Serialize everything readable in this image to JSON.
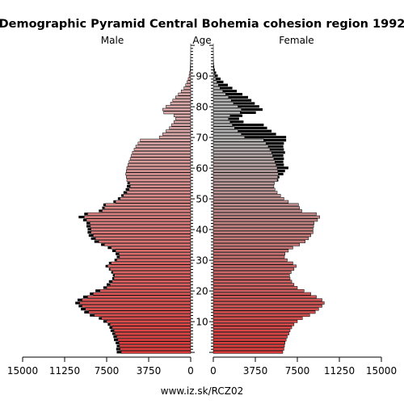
{
  "chart_data": {
    "type": "bar",
    "title": "Demographic Pyramid Central Bohemia cohesion region 1992",
    "left_label": "Male",
    "center_label": "Age",
    "right_label": "Female",
    "source": "www.iz.sk/RCZ02",
    "xlim": [
      0,
      15000
    ],
    "x_ticks_left": [
      "15000",
      "11250",
      "7500",
      "3750",
      "0"
    ],
    "x_ticks_right": [
      "0",
      "3750",
      "7500",
      "11250",
      "15000"
    ],
    "tick_values": [
      0,
      3750,
      7500,
      11250,
      15000
    ],
    "age_ticks": [
      10,
      20,
      30,
      40,
      50,
      60,
      70,
      80,
      90
    ],
    "ages": [
      0,
      1,
      2,
      3,
      4,
      5,
      6,
      7,
      8,
      9,
      10,
      11,
      12,
      13,
      14,
      15,
      16,
      17,
      18,
      19,
      20,
      21,
      22,
      23,
      24,
      25,
      26,
      27,
      28,
      29,
      30,
      31,
      32,
      33,
      34,
      35,
      36,
      37,
      38,
      39,
      40,
      41,
      42,
      43,
      44,
      45,
      46,
      47,
      48,
      49,
      50,
      51,
      52,
      53,
      54,
      55,
      56,
      57,
      58,
      59,
      60,
      61,
      62,
      63,
      64,
      65,
      66,
      67,
      68,
      69,
      70,
      71,
      72,
      73,
      74,
      75,
      76,
      77,
      78,
      79,
      80,
      81,
      82,
      83,
      84,
      85,
      86,
      87,
      88,
      89,
      90,
      91,
      92,
      93,
      94,
      95,
      96,
      97,
      98,
      99,
      100
    ],
    "series": [
      {
        "name": "Male",
        "values": [
          6600,
          6650,
          6600,
          6700,
          6850,
          6900,
          7000,
          7150,
          7250,
          7400,
          7800,
          8200,
          9000,
          9500,
          9800,
          10000,
          10300,
          10100,
          9600,
          9000,
          8500,
          7800,
          7500,
          7300,
          7000,
          6950,
          7100,
          7300,
          7600,
          7300,
          6800,
          6600,
          6700,
          7000,
          7400,
          8000,
          8600,
          8900,
          9100,
          9200,
          9200,
          9300,
          9300,
          9600,
          10000,
          9500,
          8200,
          7900,
          7800,
          6900,
          6500,
          6200,
          6000,
          5800,
          5700,
          5650,
          5700,
          5750,
          5800,
          5750,
          5700,
          5600,
          5500,
          5400,
          5300,
          5200,
          5050,
          4900,
          4700,
          4500,
          2800,
          2500,
          2200,
          1900,
          1700,
          1500,
          1350,
          1500,
          2400,
          2500,
          2200,
          1800,
          1600,
          1350,
          1100,
          850,
          600,
          450,
          320,
          220,
          140,
          90,
          55,
          35,
          22,
          14,
          9,
          6,
          4,
          2,
          1
        ],
        "colors": {
          "fill_top": "#dba9a9",
          "fill_bottom": "#dc3a3a",
          "excess": "#000000"
        }
      },
      {
        "name": "Female",
        "values": [
          6200,
          6300,
          6350,
          6400,
          6500,
          6600,
          6750,
          6850,
          7000,
          7200,
          7500,
          7950,
          8600,
          9100,
          9400,
          9700,
          9900,
          9700,
          9200,
          8700,
          8100,
          7500,
          7200,
          7000,
          6850,
          6800,
          6950,
          7200,
          7400,
          7100,
          6600,
          6350,
          6400,
          6700,
          7100,
          7700,
          8200,
          8500,
          8700,
          8900,
          8900,
          8950,
          9000,
          9300,
          9500,
          9200,
          7900,
          7700,
          7600,
          6700,
          6300,
          6000,
          5700,
          5500,
          5400,
          5450,
          5800,
          5900,
          6250,
          6400,
          6700,
          6300,
          6250,
          6300,
          6250,
          6400,
          6300,
          6250,
          6300,
          6500,
          6500,
          5600,
          5200,
          4800,
          4500,
          2700,
          2300,
          2600,
          3800,
          4400,
          4100,
          3700,
          3400,
          3100,
          2600,
          2100,
          1700,
          1300,
          900,
          650,
          400,
          250,
          140,
          80,
          45,
          25,
          14,
          8,
          5,
          2,
          1
        ],
        "colors": {
          "fill_top": "#b3b3b3",
          "fill_bottom": "#dc3a3a",
          "excess": "#000000"
        }
      }
    ],
    "grid": false
  }
}
